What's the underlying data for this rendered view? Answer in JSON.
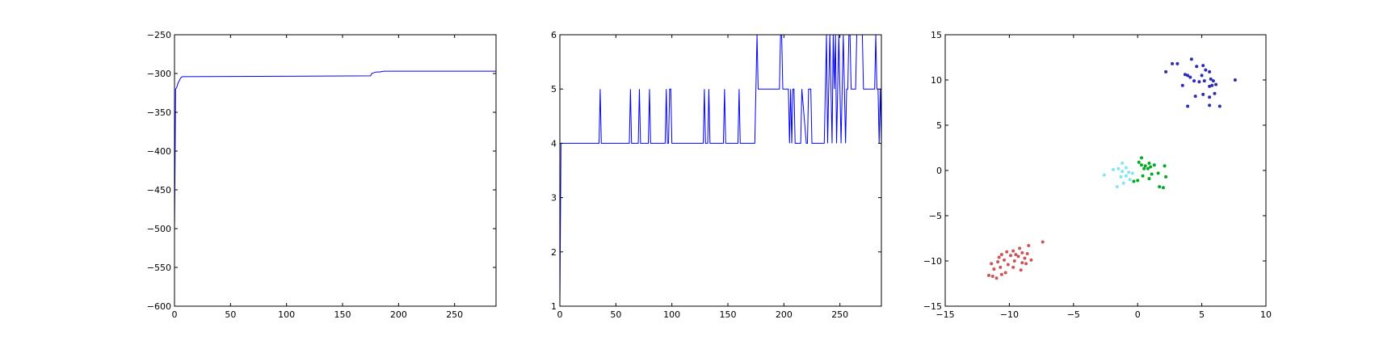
{
  "chart_data": [
    {
      "type": "line",
      "xlim": [
        0,
        287
      ],
      "ylim": [
        -600,
        -250
      ],
      "xticks": [
        0,
        50,
        100,
        150,
        200,
        250
      ],
      "yticks": [
        -600,
        -550,
        -500,
        -450,
        -400,
        -350,
        -300,
        -250
      ],
      "grid": false,
      "title": "",
      "xlabel": "",
      "ylabel": "",
      "series": [
        {
          "color": "#0000ff",
          "x": [
            0,
            1,
            2,
            3,
            4,
            5,
            6,
            7,
            8,
            175,
            176,
            178,
            180,
            183,
            187,
            287
          ],
          "y": [
            -505,
            -320,
            -318,
            -313,
            -310,
            -307,
            -305,
            -304,
            -304,
            -303,
            -300,
            -299,
            -298,
            -298,
            -297,
            -297
          ]
        }
      ]
    },
    {
      "type": "line",
      "xlim": [
        0,
        287
      ],
      "ylim": [
        1,
        6
      ],
      "xticks": [
        0,
        50,
        100,
        150,
        200,
        250
      ],
      "yticks": [
        1,
        2,
        3,
        4,
        5,
        6
      ],
      "grid": false,
      "title": "",
      "xlabel": "",
      "ylabel": "",
      "series": [
        {
          "color": "#0000ff",
          "x": [
            0,
            1,
            2,
            3,
            35,
            36,
            37,
            62,
            63,
            64,
            70,
            71,
            72,
            79,
            80,
            81,
            94,
            95,
            96,
            97,
            98,
            99,
            100,
            101,
            102,
            128,
            129,
            130,
            132,
            133,
            134,
            146,
            147,
            148,
            159,
            160,
            161,
            174,
            175,
            176,
            177,
            178,
            196,
            197,
            198,
            199,
            200,
            204,
            205,
            206,
            207,
            208,
            209,
            210,
            214,
            215,
            216,
            220,
            221,
            222,
            224,
            225,
            236,
            237,
            238,
            239,
            240,
            241,
            242,
            243,
            244,
            245,
            246,
            247,
            248,
            249,
            250,
            251,
            252,
            253,
            254,
            255,
            256,
            257,
            258,
            259,
            260,
            261,
            262,
            263,
            264,
            265,
            270,
            271,
            272,
            281,
            282,
            283,
            284,
            285,
            286,
            287
          ],
          "y": [
            1,
            4,
            4,
            4,
            4,
            5,
            4,
            4,
            5,
            4,
            4,
            5,
            4,
            4,
            5,
            4,
            4,
            5,
            4,
            4,
            5,
            5,
            4,
            4,
            4,
            4,
            5,
            4,
            4,
            5,
            4,
            4,
            5,
            4,
            4,
            5,
            4,
            4,
            5,
            6,
            5,
            5,
            5,
            6,
            6,
            5,
            5,
            5,
            4,
            5,
            4,
            5,
            5,
            4,
            4,
            4,
            5,
            4,
            4,
            5,
            5,
            4,
            4,
            5,
            6,
            4,
            5,
            6,
            5,
            4,
            6,
            5,
            6,
            4,
            5,
            6,
            5,
            4,
            5,
            6,
            5,
            4,
            5,
            5,
            6,
            6,
            5,
            5,
            5,
            5,
            5,
            6,
            6,
            5,
            5,
            5,
            6,
            5,
            5,
            4,
            5,
            4
          ]
        }
      ]
    },
    {
      "type": "scatter",
      "xlim": [
        -15,
        10
      ],
      "ylim": [
        -15,
        15
      ],
      "xticks": [
        -15,
        -10,
        -5,
        0,
        5,
        10
      ],
      "yticks": [
        -15,
        -10,
        -5,
        0,
        5,
        10,
        15
      ],
      "grid": false,
      "title": "",
      "xlabel": "",
      "ylabel": "",
      "series": [
        {
          "color": "#2b2bb3",
          "points": [
            [
              4.2,
              12.3
            ],
            [
              2.7,
              11.8
            ],
            [
              3.1,
              11.8
            ],
            [
              2.2,
              10.9
            ],
            [
              4.6,
              11.5
            ],
            [
              5.1,
              11.6
            ],
            [
              5.3,
              11.1
            ],
            [
              5.6,
              10.9
            ],
            [
              5.0,
              10.5
            ],
            [
              3.7,
              10.6
            ],
            [
              3.9,
              10.5
            ],
            [
              4.1,
              10.3
            ],
            [
              4.4,
              9.9
            ],
            [
              4.8,
              9.8
            ],
            [
              5.2,
              9.9
            ],
            [
              5.7,
              10.1
            ],
            [
              5.9,
              9.9
            ],
            [
              5.8,
              9.4
            ],
            [
              6.1,
              9.5
            ],
            [
              5.6,
              9.3
            ],
            [
              3.5,
              9.4
            ],
            [
              7.6,
              10.0
            ],
            [
              6.0,
              8.5
            ],
            [
              5.1,
              8.4
            ],
            [
              4.5,
              8.2
            ],
            [
              5.6,
              8.1
            ],
            [
              3.9,
              7.1
            ],
            [
              5.6,
              7.2
            ],
            [
              6.4,
              7.1
            ]
          ]
        },
        {
          "color": "#00aa22",
          "points": [
            [
              0.3,
              1.4
            ],
            [
              0.1,
              0.9
            ],
            [
              0.3,
              0.6
            ],
            [
              0.6,
              0.5
            ],
            [
              0.9,
              0.8
            ],
            [
              0.5,
              0.2
            ],
            [
              1.0,
              0.4
            ],
            [
              1.3,
              0.6
            ],
            [
              2.1,
              0.5
            ],
            [
              0.8,
              0.2
            ],
            [
              1.1,
              -0.4
            ],
            [
              1.6,
              -0.3
            ],
            [
              0.4,
              -0.6
            ],
            [
              0.0,
              -1.1
            ],
            [
              -0.3,
              -1.2
            ],
            [
              0.9,
              -0.9
            ],
            [
              2.2,
              -0.7
            ],
            [
              1.7,
              -1.8
            ],
            [
              2.0,
              -1.9
            ]
          ]
        },
        {
          "color": "#80e8ee",
          "points": [
            [
              -2.6,
              -0.5
            ],
            [
              -1.9,
              0.1
            ],
            [
              -1.5,
              0.2
            ],
            [
              -1.2,
              0.8
            ],
            [
              -0.9,
              0.3
            ],
            [
              -1.2,
              -0.1
            ],
            [
              -0.7,
              -0.2
            ],
            [
              -0.9,
              -0.6
            ],
            [
              -1.3,
              -0.7
            ],
            [
              -0.6,
              -1.0
            ],
            [
              -1.1,
              -1.4
            ],
            [
              -1.6,
              -1.8
            ],
            [
              -0.4,
              -0.3
            ]
          ]
        },
        {
          "color": "#cc5555",
          "points": [
            [
              -7.4,
              -7.9
            ],
            [
              -8.5,
              -8.3
            ],
            [
              -9.2,
              -8.6
            ],
            [
              -9.7,
              -8.9
            ],
            [
              -10.2,
              -9.0
            ],
            [
              -9.0,
              -9.1
            ],
            [
              -8.6,
              -9.2
            ],
            [
              -9.5,
              -9.3
            ],
            [
              -9.9,
              -9.4
            ],
            [
              -10.6,
              -9.3
            ],
            [
              -10.8,
              -9.6
            ],
            [
              -9.3,
              -9.5
            ],
            [
              -8.8,
              -9.7
            ],
            [
              -8.3,
              -9.9
            ],
            [
              -10.4,
              -9.9
            ],
            [
              -9.6,
              -10.0
            ],
            [
              -10.9,
              -10.1
            ],
            [
              -11.4,
              -10.3
            ],
            [
              -10.1,
              -10.4
            ],
            [
              -9.0,
              -10.2
            ],
            [
              -8.7,
              -10.3
            ],
            [
              -10.7,
              -10.7
            ],
            [
              -11.2,
              -10.9
            ],
            [
              -9.7,
              -10.7
            ],
            [
              -9.1,
              -11.0
            ],
            [
              -10.3,
              -11.3
            ],
            [
              -11.3,
              -11.7
            ],
            [
              -11.6,
              -11.6
            ],
            [
              -10.6,
              -11.5
            ],
            [
              -11.0,
              -11.9
            ]
          ]
        }
      ]
    }
  ]
}
